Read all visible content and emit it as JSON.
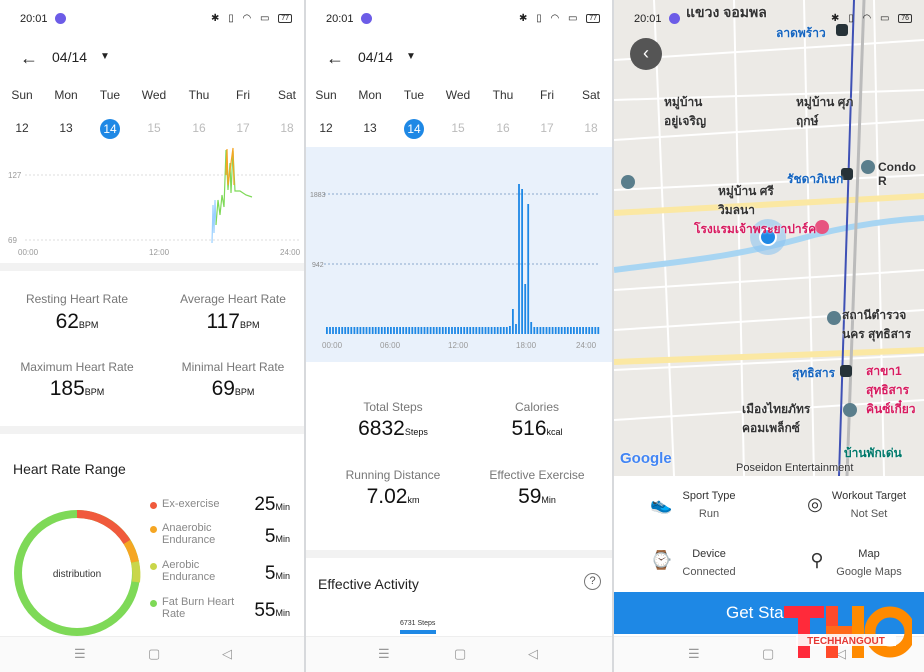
{
  "status": {
    "time": "20:01",
    "battery_left": "77",
    "battery_mid": "77",
    "battery_right": "76"
  },
  "date": {
    "label": "04/14"
  },
  "week": {
    "days": [
      "Sun",
      "Mon",
      "Tue",
      "Wed",
      "Thu",
      "Fri",
      "Sat"
    ],
    "dates": [
      "12",
      "13",
      "14",
      "15",
      "16",
      "17",
      "18"
    ],
    "selected_index": 2
  },
  "heart": {
    "y_labels": [
      "127",
      "69"
    ],
    "x_labels": [
      "00:00",
      "12:00",
      "24:00"
    ],
    "resting_label": "Resting Heart Rate",
    "resting_value": "62",
    "resting_unit": "BPM",
    "average_label": "Average Heart Rate",
    "average_value": "117",
    "average_unit": "BPM",
    "max_label": "Maximum Heart Rate",
    "max_value": "185",
    "max_unit": "BPM",
    "min_label": "Minimal Heart Rate",
    "min_value": "69",
    "min_unit": "BPM",
    "range_title": "Heart Rate Range",
    "donut_label": "distribution",
    "ranges": [
      {
        "label": "Ex-exercise",
        "value": "25",
        "unit": "Min",
        "color": "#f05a3c"
      },
      {
        "label": "Anaerobic Endurance",
        "value": "5",
        "unit": "Min",
        "color": "#f5a623"
      },
      {
        "label": "Aerobic Endurance",
        "value": "5",
        "unit": "Min",
        "color": "#c9d64a"
      },
      {
        "label": "Fat Burn Heart Rate",
        "value": "55",
        "unit": "Min",
        "color": "#7ed957"
      }
    ]
  },
  "steps": {
    "y_labels": [
      "1883",
      "942"
    ],
    "x_labels": [
      "00:00",
      "06:00",
      "12:00",
      "18:00",
      "24:00"
    ],
    "total_label": "Total Steps",
    "total_value": "6832",
    "total_unit": "Steps",
    "calories_label": "Calories",
    "calories_value": "516",
    "calories_unit": "kcal",
    "distance_label": "Running Distance",
    "distance_value": "7.02",
    "distance_unit": "km",
    "exercise_label": "Effective Exercise",
    "exercise_value": "59",
    "exercise_unit": "Min",
    "activity_title": "Effective Activity",
    "activity_help": "?",
    "activity_bar_label": "6731 Steps"
  },
  "map": {
    "labels": [
      {
        "text": "แขวง จอมพล",
        "cls": ""
      },
      {
        "text": "ลาดพร้าว",
        "cls": "blue"
      },
      {
        "text": "หมู่บ้าน อยู่เจริญ",
        "cls": ""
      },
      {
        "text": "หมู่บ้าน ศุภฤกษ์",
        "cls": ""
      },
      {
        "text": "รัชดาภิเษก",
        "cls": "blue"
      },
      {
        "text": "Condo R",
        "cls": ""
      },
      {
        "text": "หมู่บ้าน ศรีวิมลนา",
        "cls": ""
      },
      {
        "text": "โรงแรมเจ้าพระยาปาร์ค",
        "cls": "pink"
      },
      {
        "text": "สถานีตำรวจนคร สุทธิสาร",
        "cls": ""
      },
      {
        "text": "สุทธิสาร",
        "cls": "blue"
      },
      {
        "text": "สาขา1 สุทธิสาร คินซ์เกี๋ยว",
        "cls": "pink"
      },
      {
        "text": "เมืองไทยภัทร คอมเพล็กซ์",
        "cls": ""
      },
      {
        "text": "บ้านพักเด่น",
        "cls": "teal"
      },
      {
        "text": "Poseidon Entertainment",
        "cls": ""
      },
      {
        "text": "Google",
        "cls": ""
      }
    ],
    "sport_type_label": "Sport Type",
    "sport_type_value": "Run",
    "workout_target_label": "Workout Target",
    "workout_target_value": "Not Set",
    "device_label": "Device",
    "device_value": "Connected",
    "map_label": "Map",
    "map_value": "Google Maps",
    "start_button": "Get Sta",
    "watermark": "TECHHANGOUT"
  },
  "colors": {
    "accent": "#1e88e5",
    "chart_bg": "#e9f1fb",
    "logo_red": "#ff2a3a",
    "logo_orange": "#ff8a00"
  }
}
